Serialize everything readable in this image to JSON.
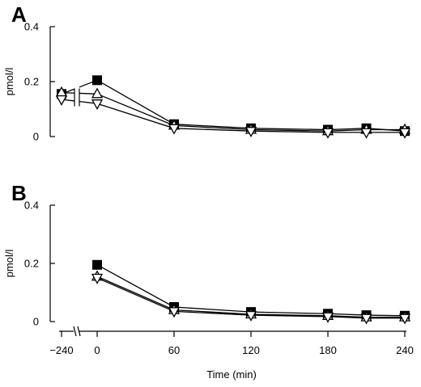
{
  "figure": {
    "xlabel": "Time (min)",
    "x_ticks": [
      -240,
      0,
      60,
      120,
      180,
      240
    ],
    "x_tick_labels": [
      "−240",
      "0",
      "60",
      "120",
      "180",
      "240"
    ]
  },
  "chart_data": [
    {
      "panel": "A",
      "type": "line",
      "ylabel": "pmol/l",
      "ylim": [
        0,
        0.4
      ],
      "y_ticks": [
        0,
        0.2,
        0.4
      ],
      "y_tick_labels": [
        "0",
        "0.2",
        "0.4"
      ],
      "xlim": [
        -240,
        240
      ],
      "axis_break": true,
      "series": [
        {
          "marker": "filled-square",
          "x": [
            -240,
            0,
            60,
            120,
            180,
            210,
            240
          ],
          "y": [
            0.155,
            0.205,
            0.045,
            0.03,
            0.025,
            0.03,
            0.02
          ]
        },
        {
          "marker": "open-triangle-up",
          "x": [
            -240,
            0,
            60,
            120,
            180,
            210,
            240
          ],
          "y": [
            0.16,
            0.155,
            0.04,
            0.025,
            0.02,
            0.025,
            0.025
          ]
        },
        {
          "marker": "open-triangle-down",
          "x": [
            -240,
            0,
            60,
            120,
            180,
            210,
            240
          ],
          "y": [
            0.135,
            0.12,
            0.03,
            0.02,
            0.015,
            0.015,
            0.015
          ]
        }
      ]
    },
    {
      "panel": "B",
      "type": "line",
      "ylabel": "pmol/l",
      "ylim": [
        0,
        0.4
      ],
      "y_ticks": [
        0,
        0.2,
        0.4
      ],
      "y_tick_labels": [
        "0",
        "0.2",
        "0.4"
      ],
      "xlim": [
        -240,
        240
      ],
      "axis_break": true,
      "series": [
        {
          "marker": "filled-square",
          "x": [
            0,
            60,
            120,
            180,
            210,
            240
          ],
          "y": [
            0.195,
            0.05,
            0.033,
            0.027,
            0.022,
            0.02
          ]
        },
        {
          "marker": "open-triangle-up",
          "x": [
            0,
            60,
            120,
            180,
            210,
            240
          ],
          "y": [
            0.155,
            0.04,
            0.025,
            0.02,
            0.015,
            0.015
          ]
        },
        {
          "marker": "open-triangle-down",
          "x": [
            0,
            60,
            120,
            180,
            210,
            240
          ],
          "y": [
            0.15,
            0.035,
            0.022,
            0.017,
            0.012,
            0.012
          ]
        }
      ]
    }
  ]
}
